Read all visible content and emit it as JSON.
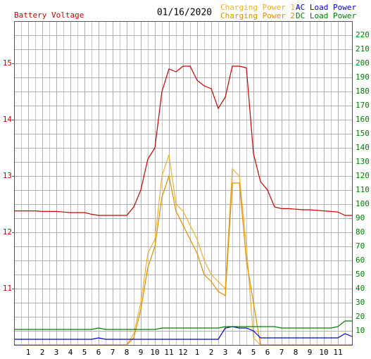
{
  "chart_data": {
    "type": "line",
    "title": "01/16/2020",
    "x": [
      0,
      0.5,
      1,
      1.5,
      2,
      2.5,
      3,
      3.5,
      4,
      4.5,
      5,
      5.5,
      6,
      6.5,
      7,
      7.5,
      8,
      8.5,
      9,
      9.5,
      10,
      10.5,
      11,
      11.5,
      12,
      12.5,
      13,
      13.5,
      14,
      14.5,
      15,
      15.5,
      16,
      16.5,
      17,
      17.5,
      18,
      18.5,
      19,
      19.5,
      20,
      20.5,
      21,
      21.5,
      22,
      22.5,
      23,
      23.5,
      24
    ],
    "xlim": [
      0,
      24
    ],
    "xticks": [
      1,
      2,
      3,
      4,
      5,
      6,
      7,
      8,
      9,
      10,
      11,
      12,
      {
        "value": 13,
        "label": "1"
      },
      {
        "value": 14,
        "label": "2"
      },
      {
        "value": 15,
        "label": "3"
      },
      {
        "value": 16,
        "label": "4"
      },
      {
        "value": 17,
        "label": "5"
      },
      {
        "value": 18,
        "label": "6"
      },
      {
        "value": 19,
        "label": "7"
      },
      {
        "value": 20,
        "label": "8"
      },
      {
        "value": 21,
        "label": "9"
      },
      {
        "value": 22,
        "label": "10"
      },
      {
        "value": 23,
        "label": "11"
      }
    ],
    "ylim": [
      10,
      15.75
    ],
    "yticks": [
      11,
      12,
      13,
      14,
      15
    ],
    "y2lim": [
      0,
      230
    ],
    "y2ticks": [
      10,
      20,
      30,
      40,
      50,
      60,
      70,
      80,
      90,
      100,
      110,
      120,
      130,
      140,
      150,
      160,
      170,
      180,
      190,
      200,
      210,
      220
    ],
    "grid": true,
    "series": [
      {
        "name": "Battery Voltage",
        "color": "#cc0000",
        "axis": "y",
        "values": [
          12.38,
          12.38,
          12.38,
          12.38,
          12.37,
          12.37,
          12.37,
          12.36,
          12.35,
          12.35,
          12.35,
          12.32,
          12.3,
          12.3,
          12.3,
          12.3,
          12.3,
          12.45,
          12.75,
          13.3,
          13.5,
          14.5,
          14.9,
          14.85,
          14.95,
          14.95,
          14.7,
          14.6,
          14.55,
          14.2,
          14.4,
          14.95,
          14.95,
          14.92,
          13.4,
          12.9,
          12.75,
          12.45,
          12.42,
          12.42,
          12.41,
          12.4,
          12.4,
          12.39,
          12.38,
          12.37,
          12.36,
          12.3,
          12.3
        ]
      },
      {
        "name": "Charging Power 1",
        "color": "#f0b030",
        "axis": "y2",
        "values": [
          0,
          0,
          0,
          0,
          0,
          0,
          0,
          0,
          0,
          0,
          0,
          0,
          0,
          0,
          0,
          0,
          0,
          8,
          30,
          65,
          75,
          120,
          135,
          100,
          95,
          85,
          75,
          60,
          50,
          45,
          40,
          125,
          120,
          70,
          5,
          0,
          0,
          0,
          0,
          0,
          0,
          0,
          0,
          0,
          0,
          0,
          0,
          0,
          0
        ]
      },
      {
        "name": "Charging Power 2",
        "color": "#e09000",
        "axis": "y2",
        "values": [
          0,
          0,
          0,
          0,
          0,
          0,
          0,
          0,
          0,
          0,
          0,
          0,
          0,
          0,
          0,
          0,
          0,
          5,
          25,
          55,
          70,
          105,
          120,
          95,
          85,
          75,
          65,
          50,
          45,
          38,
          35,
          115,
          115,
          60,
          30,
          0,
          0,
          0,
          0,
          0,
          0,
          0,
          0,
          0,
          0,
          0,
          0,
          0,
          0
        ]
      },
      {
        "name": "AC Load Power",
        "color": "#0000cc",
        "axis": "y2",
        "values": [
          4,
          4,
          4,
          4,
          4,
          4,
          4,
          4,
          4,
          4,
          4,
          4,
          5,
          4,
          4,
          4,
          4,
          4,
          4,
          4,
          4,
          4,
          4,
          4,
          4,
          4,
          4,
          4,
          4,
          4,
          12,
          13,
          12,
          12,
          10,
          5,
          5,
          5,
          5,
          5,
          5,
          5,
          5,
          5,
          5,
          5,
          5,
          8,
          6
        ]
      },
      {
        "name": "DC Load Power",
        "color": "#008000",
        "axis": "y2",
        "values": [
          11,
          11,
          11,
          11,
          11,
          11,
          11,
          11,
          11,
          11,
          11,
          11,
          12,
          11,
          11,
          11,
          11,
          11,
          11,
          11,
          11,
          12,
          12,
          12,
          12,
          12,
          12,
          12,
          12,
          12,
          13,
          13,
          13,
          13,
          13,
          13,
          13,
          13,
          12,
          12,
          12,
          12,
          12,
          12,
          12,
          12,
          13,
          17,
          17
        ]
      }
    ]
  }
}
